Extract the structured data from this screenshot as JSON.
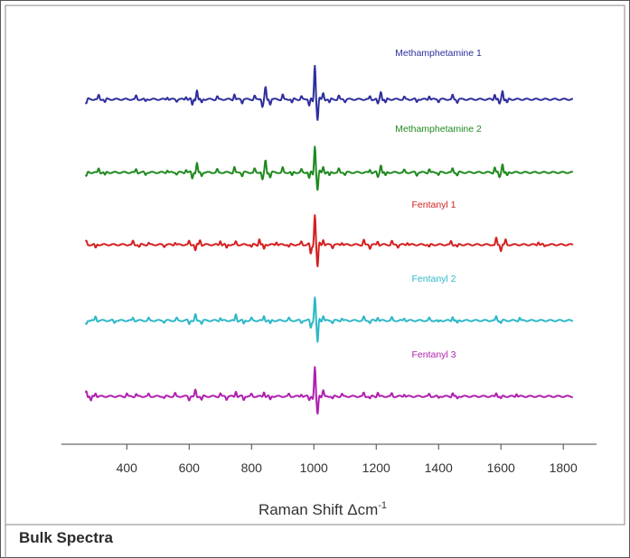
{
  "caption": "Bulk Spectra",
  "chart_data": {
    "type": "line",
    "xlabel_main": "Raman Shift ",
    "xlabel_delta": "Δcm",
    "xlabel_sup": "-1",
    "ylabel": "",
    "xlim": [
      260,
      1840
    ],
    "x_ticks": [
      "400",
      "600",
      "800",
      "1000",
      "1200",
      "1400",
      "1600",
      "1800"
    ],
    "x_tick_values": [
      400,
      600,
      800,
      1000,
      1200,
      1400,
      1600,
      1800
    ],
    "grid": false,
    "y_axis_visible": false,
    "series": [
      {
        "name": "Methamphetamine 1",
        "color": "#2e2e9e",
        "peaks": [
          [
            270,
            -0.35
          ],
          [
            310,
            0.35
          ],
          [
            330,
            -0.25
          ],
          [
            430,
            0.3
          ],
          [
            460,
            -0.2
          ],
          [
            530,
            0.2
          ],
          [
            560,
            -0.15
          ],
          [
            590,
            0.25
          ],
          [
            610,
            -0.5
          ],
          [
            625,
            0.8
          ],
          [
            640,
            -0.3
          ],
          [
            690,
            0.25
          ],
          [
            745,
            0.45
          ],
          [
            770,
            -0.3
          ],
          [
            810,
            0.3
          ],
          [
            835,
            -0.6
          ],
          [
            845,
            1.0
          ],
          [
            860,
            -0.4
          ],
          [
            900,
            0.4
          ],
          [
            930,
            -0.3
          ],
          [
            960,
            0.25
          ],
          [
            985,
            -0.5
          ],
          [
            1003,
            2.8
          ],
          [
            1012,
            -1.6
          ],
          [
            1030,
            0.5
          ],
          [
            1050,
            -0.3
          ],
          [
            1080,
            0.3
          ],
          [
            1100,
            -0.2
          ],
          [
            1180,
            0.25
          ],
          [
            1205,
            -0.4
          ],
          [
            1215,
            0.65
          ],
          [
            1230,
            -0.3
          ],
          [
            1290,
            0.2
          ],
          [
            1330,
            -0.25
          ],
          [
            1370,
            0.3
          ],
          [
            1400,
            -0.2
          ],
          [
            1445,
            0.35
          ],
          [
            1460,
            -0.25
          ],
          [
            1580,
            0.45
          ],
          [
            1595,
            -0.4
          ],
          [
            1605,
            0.75
          ],
          [
            1620,
            -0.3
          ]
        ]
      },
      {
        "name": "Methamphetamine 2",
        "color": "#1f8a1f",
        "peaks": [
          [
            270,
            -0.35
          ],
          [
            310,
            0.35
          ],
          [
            330,
            -0.25
          ],
          [
            430,
            0.3
          ],
          [
            460,
            -0.2
          ],
          [
            530,
            0.2
          ],
          [
            560,
            -0.15
          ],
          [
            590,
            0.25
          ],
          [
            610,
            -0.5
          ],
          [
            625,
            0.8
          ],
          [
            640,
            -0.3
          ],
          [
            690,
            0.25
          ],
          [
            745,
            0.45
          ],
          [
            770,
            -0.3
          ],
          [
            810,
            0.3
          ],
          [
            835,
            -0.6
          ],
          [
            845,
            1.0
          ],
          [
            860,
            -0.4
          ],
          [
            900,
            0.4
          ],
          [
            930,
            -0.3
          ],
          [
            960,
            0.25
          ],
          [
            985,
            -0.5
          ],
          [
            1003,
            2.2
          ],
          [
            1012,
            -1.4
          ],
          [
            1030,
            0.5
          ],
          [
            1050,
            -0.3
          ],
          [
            1080,
            0.3
          ],
          [
            1100,
            -0.2
          ],
          [
            1180,
            0.25
          ],
          [
            1205,
            -0.4
          ],
          [
            1215,
            0.65
          ],
          [
            1230,
            -0.3
          ],
          [
            1290,
            0.2
          ],
          [
            1330,
            -0.25
          ],
          [
            1370,
            0.3
          ],
          [
            1400,
            -0.2
          ],
          [
            1445,
            0.35
          ],
          [
            1460,
            -0.25
          ],
          [
            1580,
            0.45
          ],
          [
            1595,
            -0.4
          ],
          [
            1605,
            0.75
          ],
          [
            1620,
            -0.3
          ]
        ]
      },
      {
        "name": "Fentanyl 1",
        "color": "#d42020",
        "peaks": [
          [
            270,
            0.3
          ],
          [
            300,
            -0.3
          ],
          [
            420,
            0.3
          ],
          [
            440,
            -0.2
          ],
          [
            470,
            0.15
          ],
          [
            520,
            -0.15
          ],
          [
            555,
            0.2
          ],
          [
            600,
            0.3
          ],
          [
            620,
            -0.5
          ],
          [
            635,
            0.4
          ],
          [
            700,
            0.35
          ],
          [
            720,
            -0.3
          ],
          [
            750,
            0.25
          ],
          [
            800,
            -0.2
          ],
          [
            825,
            0.5
          ],
          [
            840,
            -0.4
          ],
          [
            880,
            0.25
          ],
          [
            920,
            -0.2
          ],
          [
            960,
            0.25
          ],
          [
            990,
            -0.8
          ],
          [
            1003,
            2.5
          ],
          [
            1012,
            -1.8
          ],
          [
            1030,
            0.45
          ],
          [
            1060,
            -0.25
          ],
          [
            1090,
            0.2
          ],
          [
            1160,
            0.4
          ],
          [
            1180,
            -0.3
          ],
          [
            1205,
            0.3
          ],
          [
            1250,
            0.3
          ],
          [
            1270,
            -0.2
          ],
          [
            1300,
            0.2
          ],
          [
            1370,
            -0.2
          ],
          [
            1440,
            0.3
          ],
          [
            1460,
            -0.2
          ],
          [
            1585,
            0.55
          ],
          [
            1600,
            -0.5
          ],
          [
            1615,
            0.4
          ],
          [
            1720,
            0.25
          ],
          [
            1740,
            -0.15
          ]
        ]
      },
      {
        "name": "Fentanyl 2",
        "color": "#2db8c8",
        "peaks": [
          [
            270,
            -0.3
          ],
          [
            300,
            0.35
          ],
          [
            360,
            -0.2
          ],
          [
            420,
            0.25
          ],
          [
            470,
            0.2
          ],
          [
            520,
            -0.15
          ],
          [
            560,
            0.2
          ],
          [
            600,
            -0.3
          ],
          [
            620,
            0.5
          ],
          [
            640,
            -0.25
          ],
          [
            700,
            0.25
          ],
          [
            750,
            0.55
          ],
          [
            775,
            -0.3
          ],
          [
            800,
            0.2
          ],
          [
            840,
            0.4
          ],
          [
            860,
            -0.3
          ],
          [
            920,
            0.2
          ],
          [
            960,
            -0.2
          ],
          [
            990,
            -0.6
          ],
          [
            1003,
            1.9
          ],
          [
            1012,
            -1.8
          ],
          [
            1030,
            0.4
          ],
          [
            1060,
            -0.2
          ],
          [
            1090,
            0.2
          ],
          [
            1160,
            0.3
          ],
          [
            1180,
            -0.2
          ],
          [
            1205,
            0.3
          ],
          [
            1250,
            0.25
          ],
          [
            1290,
            0.2
          ],
          [
            1370,
            0.2
          ],
          [
            1400,
            -0.15
          ],
          [
            1445,
            0.35
          ],
          [
            1460,
            -0.25
          ],
          [
            1585,
            0.35
          ],
          [
            1600,
            -0.2
          ],
          [
            1660,
            0.25
          ]
        ]
      },
      {
        "name": "Fentanyl 3",
        "color": "#b020b0",
        "peaks": [
          [
            270,
            0.5
          ],
          [
            285,
            -0.4
          ],
          [
            300,
            0.3
          ],
          [
            400,
            0.25
          ],
          [
            430,
            0.2
          ],
          [
            470,
            0.2
          ],
          [
            520,
            -0.15
          ],
          [
            555,
            0.25
          ],
          [
            600,
            -0.3
          ],
          [
            620,
            0.55
          ],
          [
            640,
            -0.3
          ],
          [
            700,
            0.25
          ],
          [
            720,
            -0.25
          ],
          [
            750,
            0.45
          ],
          [
            775,
            -0.3
          ],
          [
            800,
            0.2
          ],
          [
            840,
            0.4
          ],
          [
            860,
            -0.3
          ],
          [
            920,
            0.2
          ],
          [
            960,
            0.2
          ],
          [
            985,
            -0.3
          ],
          [
            1003,
            2.4
          ],
          [
            1012,
            -1.4
          ],
          [
            1030,
            0.5
          ],
          [
            1060,
            -0.2
          ],
          [
            1090,
            0.2
          ],
          [
            1160,
            0.3
          ],
          [
            1180,
            -0.2
          ],
          [
            1205,
            0.35
          ],
          [
            1250,
            0.25
          ],
          [
            1290,
            0.2
          ],
          [
            1370,
            0.2
          ],
          [
            1400,
            -0.15
          ],
          [
            1445,
            0.3
          ],
          [
            1460,
            -0.2
          ],
          [
            1585,
            0.3
          ],
          [
            1600,
            -0.2
          ],
          [
            1650,
            0.25
          ]
        ]
      }
    ]
  }
}
